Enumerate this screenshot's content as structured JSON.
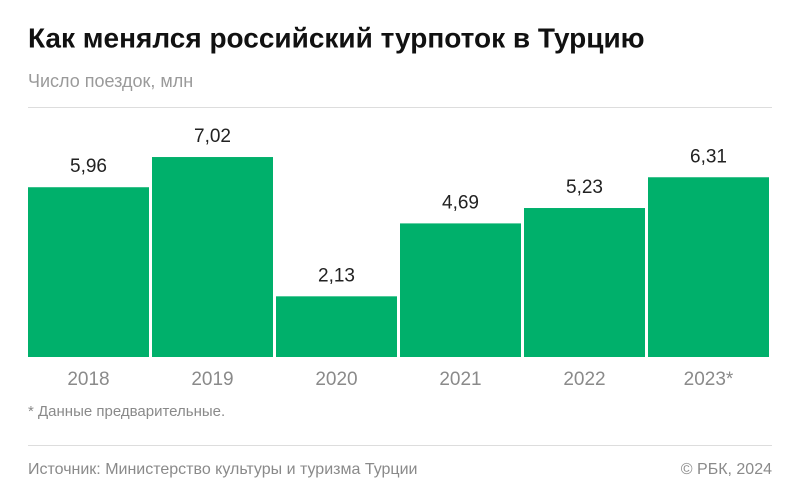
{
  "chart_data": {
    "type": "bar",
    "title": "Как менялся российский турпоток в Турцию",
    "subtitle": "Число поездок, млн",
    "categories": [
      "2018",
      "2019",
      "2020",
      "2021",
      "2022",
      "2023*"
    ],
    "values": [
      5.96,
      7.02,
      2.13,
      4.69,
      5.23,
      6.31
    ],
    "value_labels": [
      "5,96",
      "7,02",
      "2,13",
      "4,69",
      "5,23",
      "6,31"
    ],
    "color": "#00b06b",
    "ylim": [
      0,
      7
    ],
    "footnote": "* Данные предварительные.",
    "source": "Источник: Министерство культуры и туризма Турции",
    "copyright": "© РБК, 2024"
  }
}
